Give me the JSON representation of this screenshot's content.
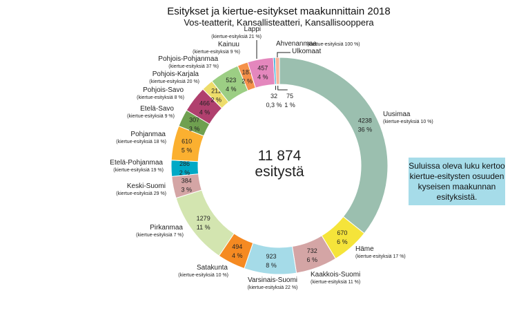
{
  "chart_data": {
    "type": "pie",
    "style": "donut",
    "title": "Esitykset ja kiertue-esitykset maakunnittain 2018",
    "subtitle": "Vos-teatterit, Kansallisteatteri, Kansallisooppera",
    "center_value": "11 874",
    "center_label": "esitystä",
    "slices": [
      {
        "name": "Uusimaa",
        "value": 4238,
        "pct": "36 %",
        "tour": "(kiertue-esityksiä 10 %)",
        "color": "#9bbfaf"
      },
      {
        "name": "Häme",
        "value": 670,
        "pct": "6 %",
        "tour": "(kiertue-esityksiä 17 %)",
        "color": "#f5e43a"
      },
      {
        "name": "Kaakkois-Suomi",
        "value": 732,
        "pct": "6 %",
        "tour": "(kiertue-esityksiä 11 %)",
        "color": "#d4a5a5"
      },
      {
        "name": "Varsinais-Suomi",
        "value": 923,
        "pct": "8 %",
        "tour": "(kiertue-esityksiä 22 %)",
        "color": "#a5dbe8"
      },
      {
        "name": "Satakunta",
        "value": 494,
        "pct": "4 %",
        "tour": "(kiertue-esityksiä 10 %)",
        "color": "#f58a22"
      },
      {
        "name": "Pirkanmaa",
        "value": 1279,
        "pct": "11 %",
        "tour": "(kiertue-esityksiä 7 %)",
        "color": "#d3e5b0"
      },
      {
        "name": "Keski-Suomi",
        "value": 384,
        "pct": "3 %",
        "tour": "(kiertue-esityksiä 29 %)",
        "color": "#d4a5a5"
      },
      {
        "name": "Etelä-Pohjanmaa",
        "value": 286,
        "pct": "2 %",
        "tour": "(kiertue-esityksiä 19 %)",
        "color": "#00a9c6"
      },
      {
        "name": "Pohjanmaa",
        "value": 610,
        "pct": "5 %",
        "tour": "(kiertue-esityksiä 18 %)",
        "color": "#fbb030"
      },
      {
        "name": "Etelä-Savo",
        "value": 307,
        "pct": "3 %",
        "tour": "(kiertue-esityksiä 9 %)",
        "color": "#6fa050"
      },
      {
        "name": "Pohjois-Savo",
        "value": 466,
        "pct": "4 %",
        "tour": "(kiertue-esityksiä 8 %)",
        "color": "#b0406e"
      },
      {
        "name": "Pohjois-Karjala",
        "value": 211,
        "pct": "2 %",
        "tour": "(kiertue-esityksiä 20 %)",
        "color": "#eddc6a"
      },
      {
        "name": "Pohjois-Pohjanmaa",
        "value": 523,
        "pct": "4 %",
        "tour": "(kiertue-esityksiä 37 %)",
        "color": "#9cce84"
      },
      {
        "name": "Kainuu",
        "value": 187,
        "pct": "2 %",
        "tour": "(kiertue-esityksiä 9 %)",
        "color": "#f5914a"
      },
      {
        "name": "Lappi",
        "value": 457,
        "pct": "4 %",
        "tour": "(kiertue-esityksiä 21 %)",
        "color": "#e487bd"
      },
      {
        "name": "Ahvenanmaa",
        "value": 32,
        "pct": "0,3 %",
        "tour": "(kiertue-esityksiä 100 %)",
        "color": "#1fa6d6"
      },
      {
        "name": "Ulkomaat",
        "value": 75,
        "pct": "1 %",
        "tour": "",
        "color": "#f7b49a"
      }
    ]
  },
  "note": "Suluissa oleva luku kertoo kiertue-esitysten osuuden kyseisen maakunnan esityksistä."
}
